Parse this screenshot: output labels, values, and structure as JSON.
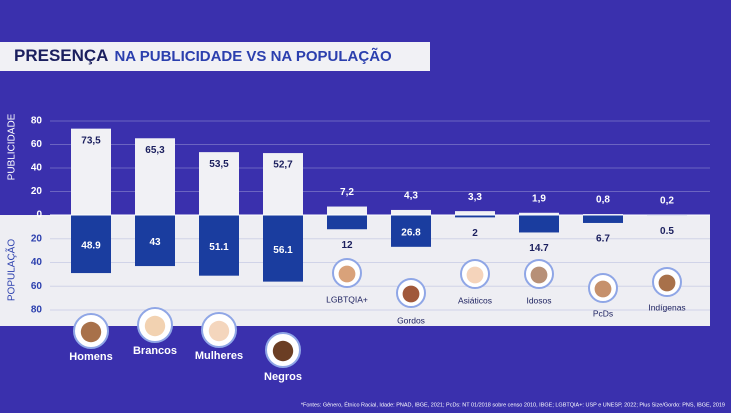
{
  "chart_data": {
    "type": "diverging-bar",
    "title_bold": "PRESENÇA",
    "title_rest": "NA PUBLICIDADE VS NA POPULAÇÃO",
    "y_label": "PUBLICIDADE",
    "y2_label": "POPULAÇÃO",
    "categories": [
      "Homens",
      "Brancos",
      "Mulheres",
      "Negros",
      "LGBTQIA+",
      "Gordos",
      "Asiáticos",
      "Idosos",
      "PcDs",
      "Indígenas"
    ],
    "series": [
      {
        "name": "Publicidade",
        "color": "#f1f1f5",
        "values": [
          73.5,
          65.3,
          53.5,
          52.7,
          7.2,
          4.3,
          3.3,
          1.9,
          0.8,
          0.2
        ],
        "value_labels": [
          "73,5",
          "65,3",
          "53,5",
          "52,7",
          "7,2",
          "4,3",
          "3,3",
          "1,9",
          "0,8",
          "0,2"
        ]
      },
      {
        "name": "População",
        "color": "#1a3d9f",
        "axis": "y2",
        "values": [
          48.9,
          43,
          51.1,
          56.1,
          12,
          26.8,
          2,
          14.7,
          6.7,
          0.5
        ]
      }
    ],
    "ylim": [
      0,
      80
    ],
    "yticks": [
      0,
      20,
      40,
      60,
      80
    ],
    "y2lim": [
      0,
      80
    ],
    "y2ticks": [
      20,
      40,
      60,
      80
    ],
    "grid": true,
    "footnote": "*Fontes: Gênero, Étnico Racial, Idade: PNAD, IBGE, 2021;  PcDs: NT 01/2018 sobre censo 2010, IBGE; LGBTQIA+: USP e UNESP, 2022;  Plus Size/Gordo: PNS, IBGE, 2019"
  }
}
